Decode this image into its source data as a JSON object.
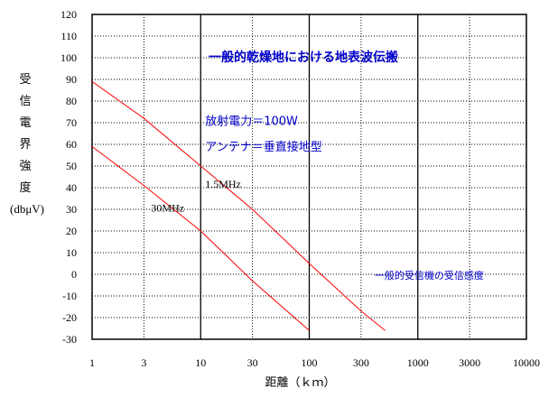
{
  "chart_data": {
    "type": "line",
    "title": "一般的乾燥地における地表波伝搬",
    "xlabel": "距離（ｋｍ）",
    "ylabel_chars": [
      "受",
      "信",
      "電",
      "界",
      "強",
      "度"
    ],
    "ylabel_unit": "(dbμV)",
    "x_scale": "log",
    "xlim": [
      1,
      10000
    ],
    "ylim": [
      -30,
      120
    ],
    "x_ticks": [
      {
        "value": 1,
        "label": "1"
      },
      {
        "value": 3,
        "label": "3"
      },
      {
        "value": 10,
        "label": "10"
      },
      {
        "value": 30,
        "label": "30"
      },
      {
        "value": 100,
        "label": "100"
      },
      {
        "value": 300,
        "label": "300"
      },
      {
        "value": 1000,
        "label": "1000"
      },
      {
        "value": 3000,
        "label": "3000"
      },
      {
        "value": 10000,
        "label": "10000"
      }
    ],
    "y_ticks": [
      {
        "value": 120,
        "label": "120"
      },
      {
        "value": 110,
        "label": "110"
      },
      {
        "value": 100,
        "label": "100"
      },
      {
        "value": 90,
        "label": "90"
      },
      {
        "value": 80,
        "label": "80"
      },
      {
        "value": 70,
        "label": "70"
      },
      {
        "value": 60,
        "label": "60"
      },
      {
        "value": 50,
        "label": "50"
      },
      {
        "value": 40,
        "label": "40"
      },
      {
        "value": 30,
        "label": "30"
      },
      {
        "value": 20,
        "label": "20"
      },
      {
        "value": 10,
        "label": "10"
      },
      {
        "value": 0,
        "label": "0"
      },
      {
        "value": -10,
        "label": "-10"
      },
      {
        "value": -20,
        "label": "-20"
      },
      {
        "value": -30,
        "label": "-30"
      }
    ],
    "major_x_grid": [
      1,
      10,
      100,
      1000,
      10000
    ],
    "minor_x_grid": [
      3,
      30,
      300,
      3000
    ],
    "grid": true,
    "series": [
      {
        "name": "1.5MHz",
        "color": "#ff0000",
        "points": [
          [
            1,
            89
          ],
          [
            3,
            72
          ],
          [
            10,
            50
          ],
          [
            30,
            30
          ],
          [
            100,
            5
          ],
          [
            300,
            -17
          ],
          [
            500,
            -26
          ]
        ]
      },
      {
        "name": "30MHz",
        "color": "#ff0000",
        "points": [
          [
            1,
            59
          ],
          [
            3,
            41
          ],
          [
            10,
            20
          ],
          [
            30,
            -3
          ],
          [
            100,
            -26
          ]
        ]
      }
    ],
    "series_labels": [
      {
        "text": "1.5MHz",
        "x": 11,
        "y": 40
      },
      {
        "text": "30MHz",
        "x": 3.5,
        "y": 29
      }
    ],
    "annotations": [
      {
        "text": "放射電力＝100W",
        "x": 11,
        "y": 69,
        "style": "anno-blue"
      },
      {
        "text": "アンテナ＝垂直接地型",
        "x": 11,
        "y": 57,
        "style": "anno-blue"
      },
      {
        "text": "一般的受信機の受信感度",
        "x": 400,
        "y": -2,
        "style": "anno-blue-small"
      }
    ],
    "reference_line": {
      "y": 0
    }
  }
}
